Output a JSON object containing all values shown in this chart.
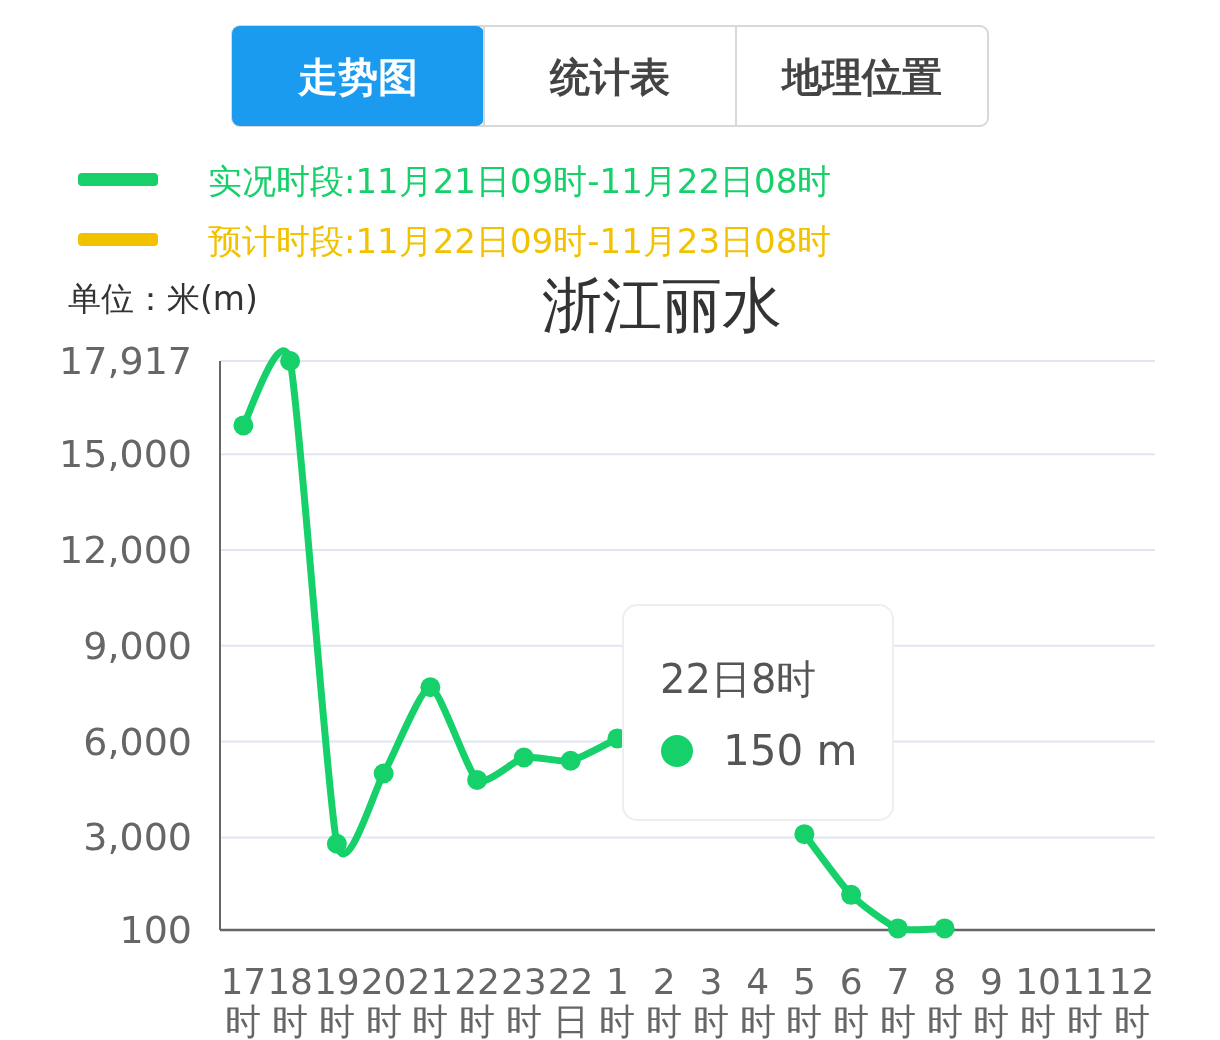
{
  "chart_data": {
    "type": "line",
    "title": "浙江丽水",
    "ylabel": "单位：米(m)",
    "categories": [
      "17时",
      "18时",
      "19时",
      "20时",
      "21时",
      "22时",
      "23时",
      "22日",
      "1时",
      "2时",
      "3时",
      "4时",
      "5时",
      "6时",
      "7时",
      "8时",
      "9时",
      "10时",
      "11时",
      "12时"
    ],
    "series": [
      {
        "name": "实况时段:11月21日09时-11月22日08时",
        "color": "#16d06a",
        "values": [
          15900,
          17917,
          2800,
          5000,
          7700,
          4800,
          5500,
          5400,
          6100,
          null,
          null,
          null,
          3100,
          1200,
          150,
          150,
          null,
          null,
          null,
          null
        ]
      },
      {
        "name": "预计时段:11月22日09时-11月23日08时",
        "color": "#f2c200",
        "values": [
          null,
          null,
          null,
          null,
          null,
          null,
          null,
          null,
          null,
          null,
          null,
          null,
          null,
          null,
          null,
          null,
          null,
          null,
          null,
          null
        ]
      }
    ],
    "ylim": [
      100,
      17917
    ],
    "yticks": [
      100,
      {
        "value": 3000,
        "label": "3,000"
      },
      {
        "value": 6000,
        "label": "6,000"
      },
      {
        "value": 9000,
        "label": "9,000"
      },
      {
        "value": 12000,
        "label": "12,000"
      },
      {
        "value": 15000,
        "label": "15,000"
      },
      {
        "value": 17917,
        "label": "17,917"
      }
    ],
    "grid": "y",
    "legend": "top left",
    "marker": "circle",
    "line_style": "solid",
    "annotations": [
      "走势图",
      "统计表",
      "地理位置",
      "22日8时",
      "150 m"
    ]
  }
}
